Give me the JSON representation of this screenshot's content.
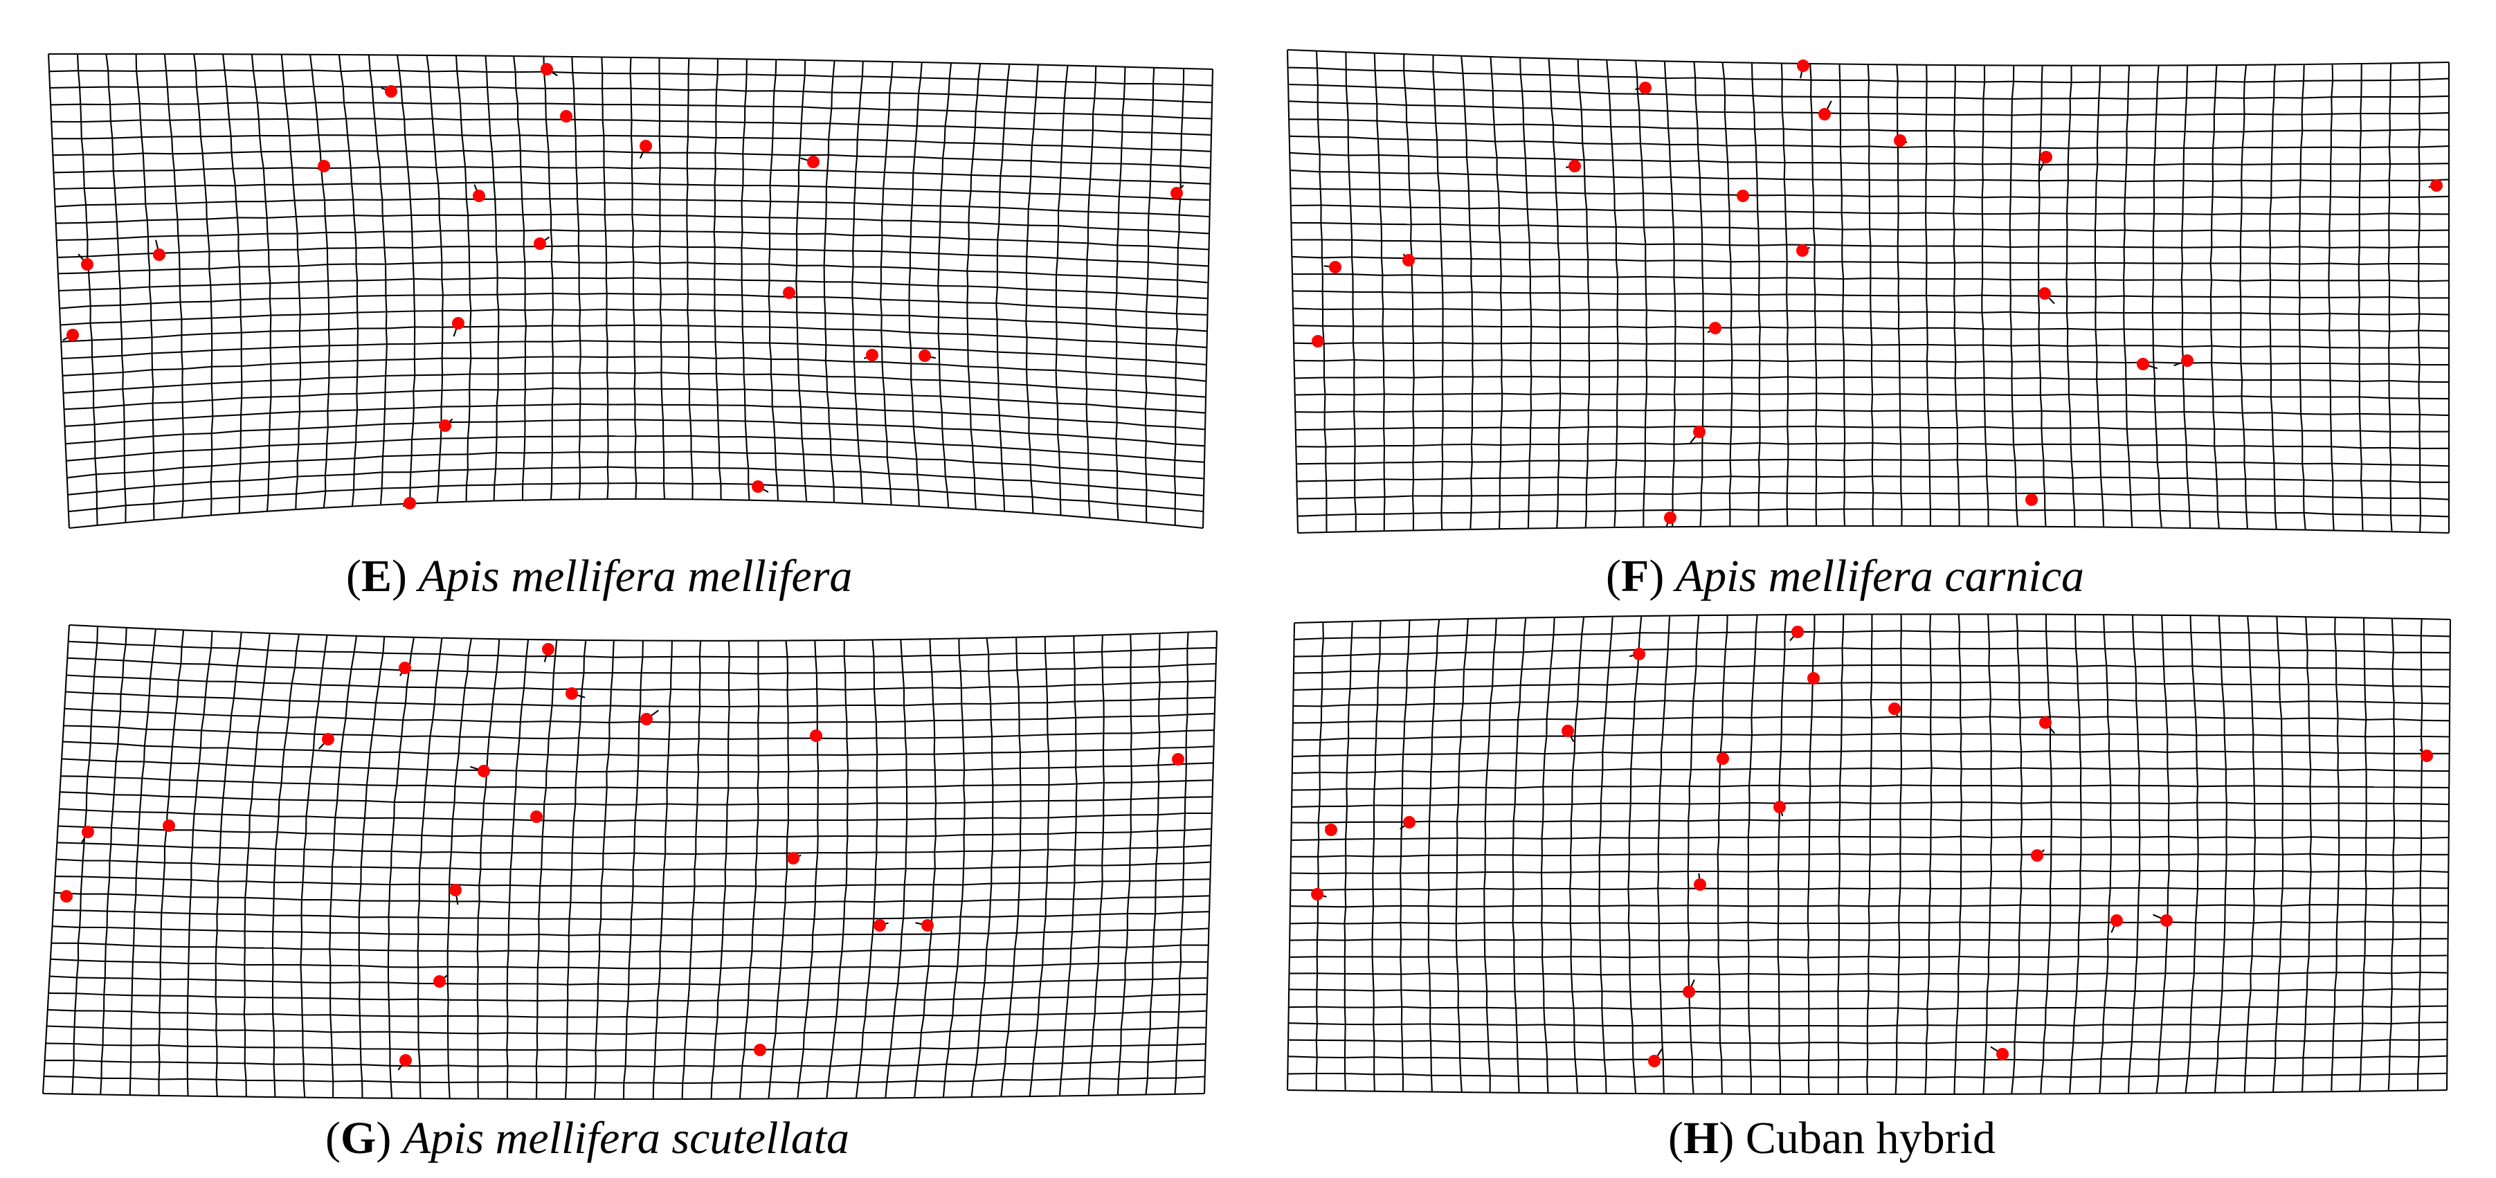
{
  "panels": [
    {
      "letter": "E",
      "name": "Apis mellifera mellifera",
      "italic": true,
      "landmark_count": 19,
      "landmark_color": "#ff0000",
      "grid_line_color": "#000000"
    },
    {
      "letter": "F",
      "name": "Apis mellifera carnica",
      "italic": true,
      "landmark_count": 19,
      "landmark_color": "#ff0000",
      "grid_line_color": "#000000"
    },
    {
      "letter": "G",
      "name": "Apis mellifera scutellata",
      "italic": true,
      "landmark_count": 19,
      "landmark_color": "#ff0000",
      "grid_line_color": "#000000"
    },
    {
      "letter": "H",
      "name": "Cuban hybrid",
      "italic": false,
      "landmark_count": 19,
      "landmark_color": "#ff0000",
      "grid_line_color": "#000000"
    }
  ]
}
